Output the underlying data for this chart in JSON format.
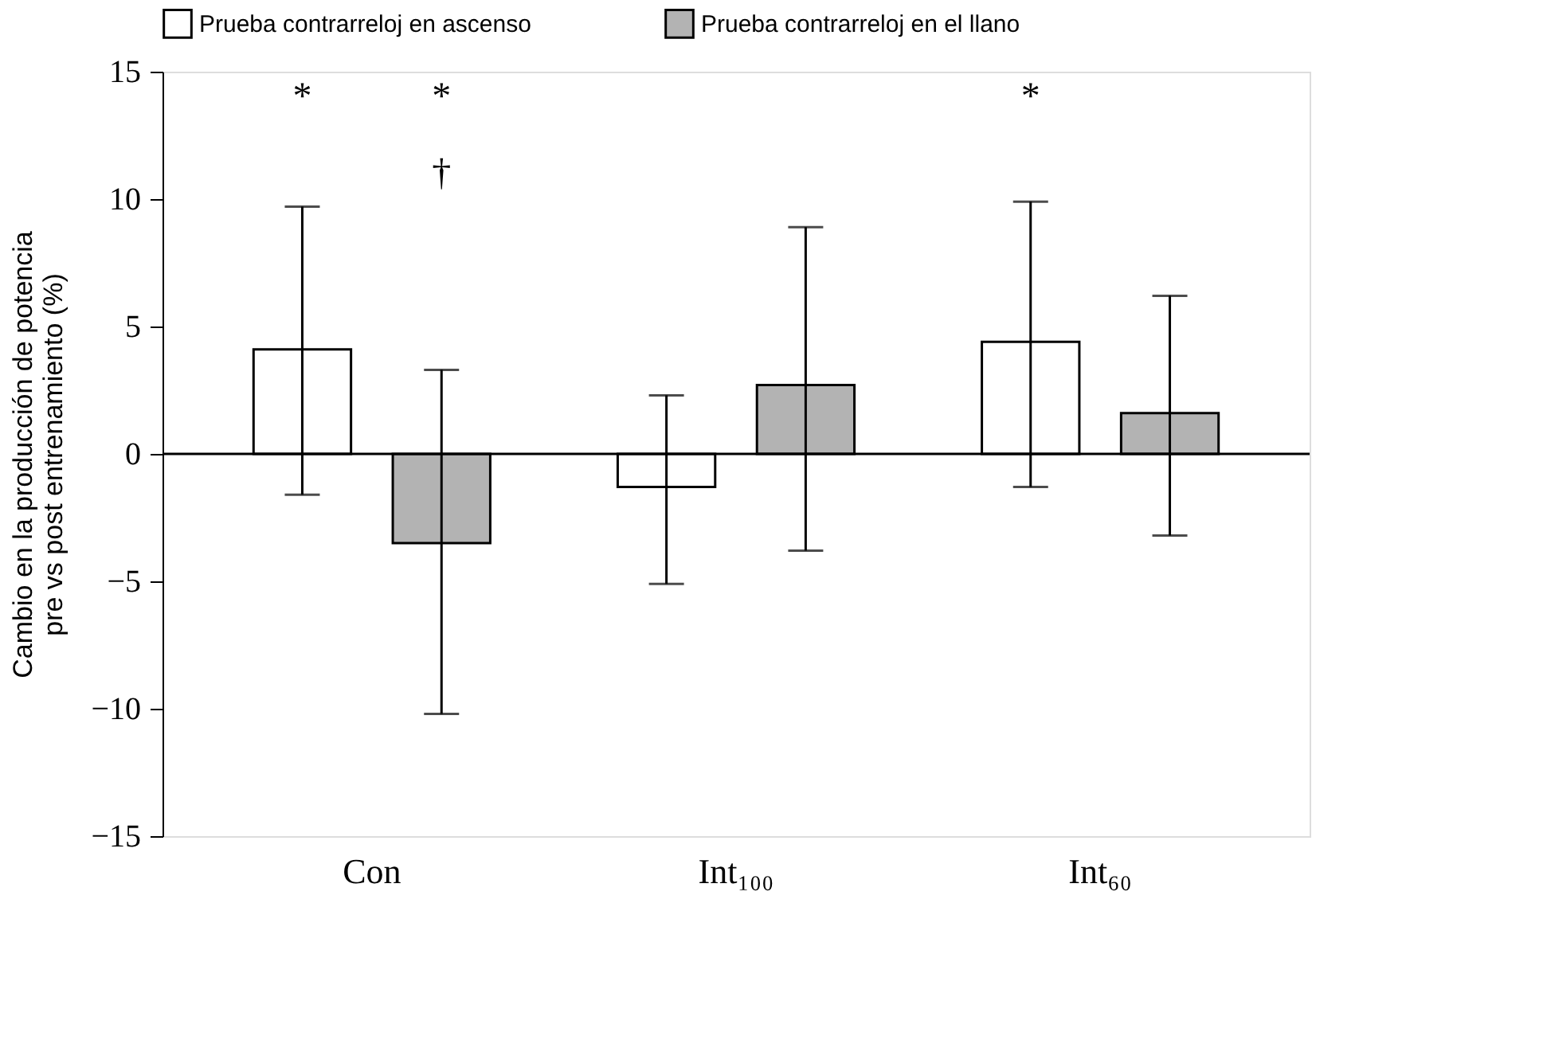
{
  "chart_data": {
    "type": "bar",
    "ylabel": "Cambio en la producción de potencia\npre vs post entrenamiento (%)",
    "categories": [
      "Con",
      "Int₁₀₀",
      "Int₆₀"
    ],
    "series": [
      {
        "name": "Prueba contrarreloj en ascenso",
        "color": "#ffffff",
        "values": [
          4.1,
          -1.3,
          4.4
        ],
        "errors": [
          [
            -1.6,
            9.7
          ],
          [
            -5.1,
            2.3
          ],
          [
            -1.3,
            9.9
          ]
        ]
      },
      {
        "name": "Prueba contrarreloj en el llano",
        "color": "#b3b3b3",
        "values": [
          -3.5,
          2.7,
          1.6
        ],
        "errors": [
          [
            -10.2,
            3.3
          ],
          [
            -3.8,
            8.9
          ],
          [
            -3.2,
            6.2
          ]
        ]
      }
    ],
    "ylim": [
      -15,
      15
    ],
    "yticks": [
      -15,
      -10,
      -5,
      0,
      5,
      10,
      15
    ],
    "ref_lines": [
      {
        "axis": "y",
        "value": 0
      }
    ],
    "annotations": [
      "*",
      "*",
      "†",
      "*"
    ],
    "grid": false,
    "legend": "top"
  }
}
